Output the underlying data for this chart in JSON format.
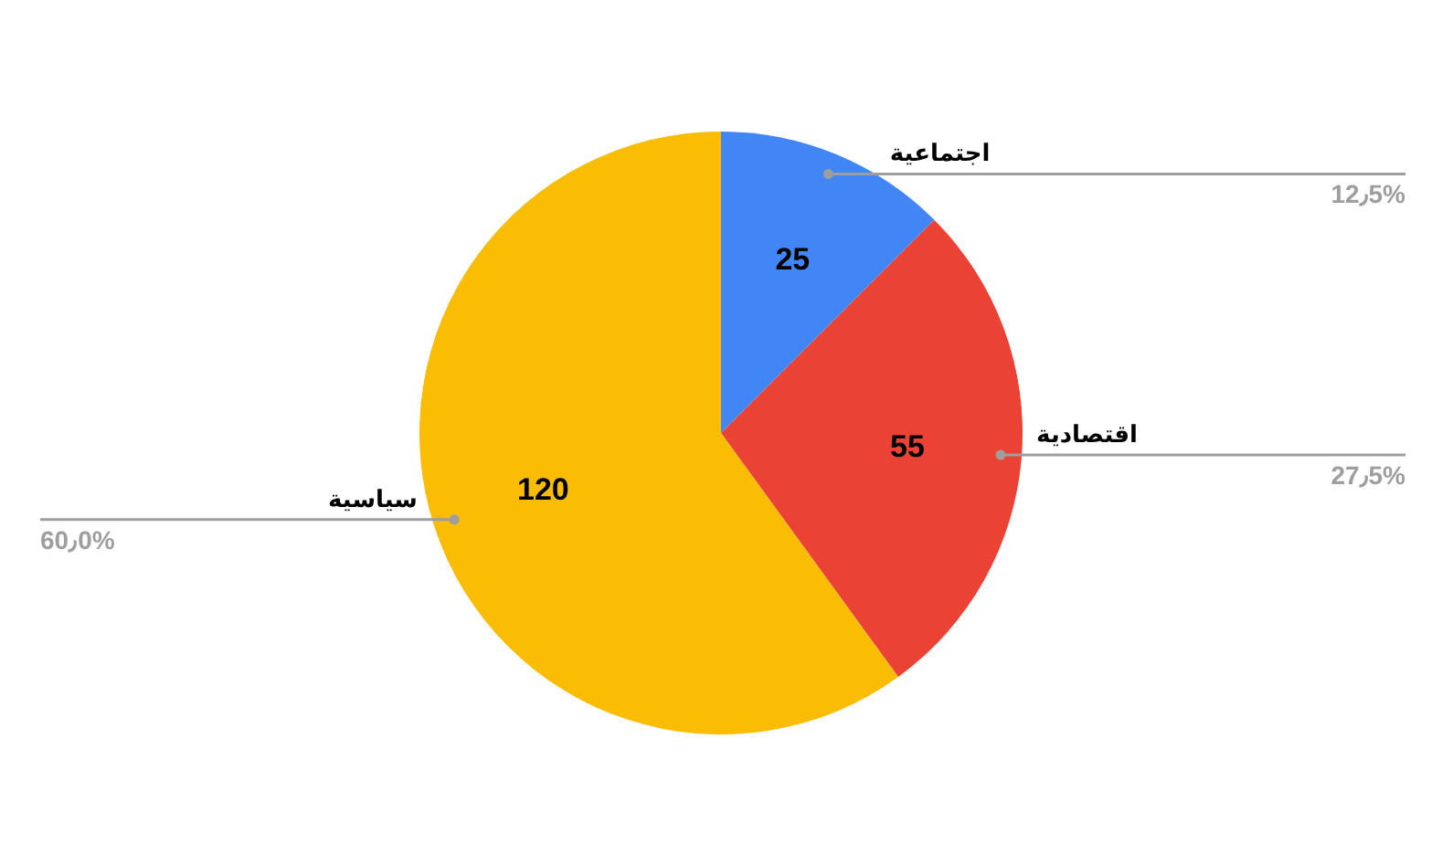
{
  "chart_data": {
    "type": "pie",
    "categories": [
      "اجتماعية",
      "اقتصادية",
      "سياسية"
    ],
    "values": [
      25,
      55,
      120
    ],
    "colors": [
      "#4285f4",
      "#ea4335",
      "#fbbc04"
    ],
    "data_labels": true,
    "annotations": [
      "12٫5%",
      "27٫5%",
      "60٫0%"
    ]
  }
}
